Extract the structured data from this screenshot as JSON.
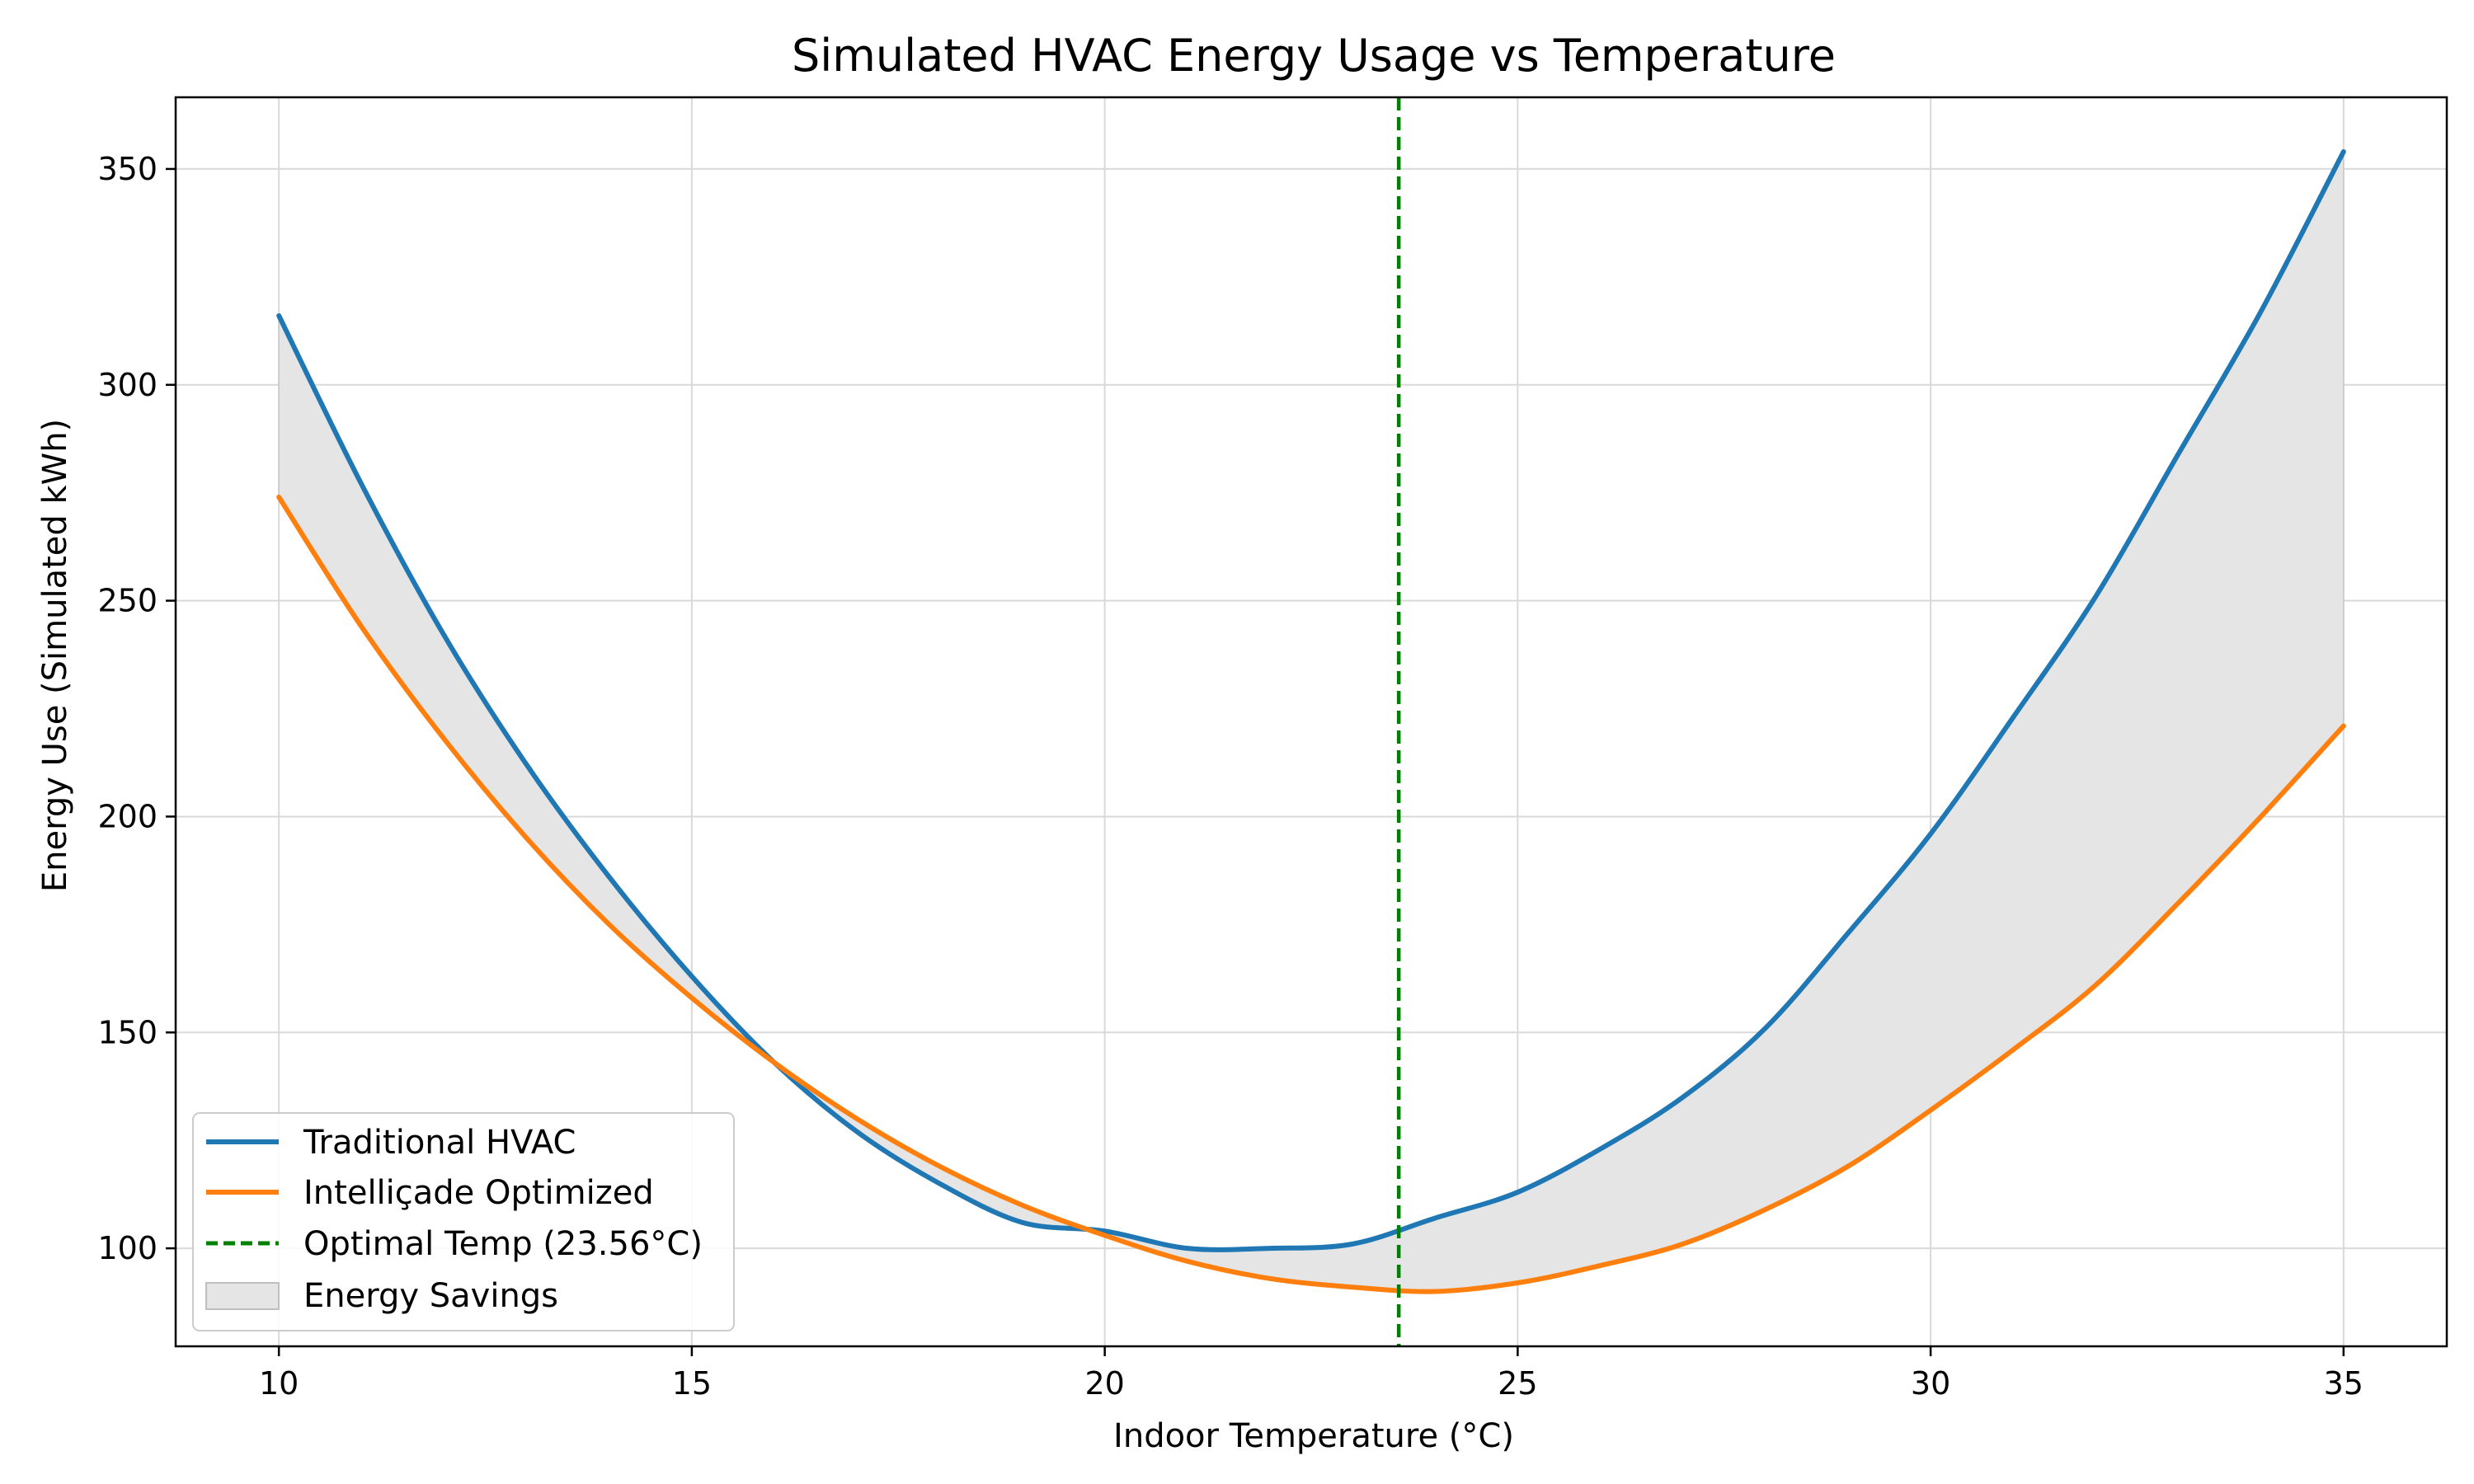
{
  "chart_data": {
    "type": "line",
    "title": "Simulated HVAC Energy Usage vs Temperature",
    "xlabel": "Indoor Temperature (°C)",
    "ylabel": "Energy Use (Simulated kWh)",
    "xlim": [
      8.75,
      36.25
    ],
    "ylim": [
      77.3,
      366.6
    ],
    "x_ticks": [
      10,
      15,
      20,
      25,
      30,
      35
    ],
    "y_ticks": [
      100,
      150,
      200,
      250,
      300,
      350
    ],
    "grid": true,
    "legend_position": "lower-left",
    "series": [
      {
        "name": "Traditional HVAC",
        "color": "#1f77b4",
        "style": "solid",
        "x": [
          10,
          11,
          12,
          13,
          14,
          15,
          16,
          17,
          18,
          19,
          20,
          21,
          22,
          23,
          24,
          25,
          26,
          27,
          28,
          29,
          30,
          31,
          32,
          33,
          34,
          35
        ],
        "y": [
          316,
          277,
          242,
          212,
          186,
          163,
          143,
          127,
          115,
          106,
          104,
          100,
          100,
          101,
          107,
          113,
          123,
          135,
          151,
          173,
          196,
          223,
          251,
          284,
          317,
          354
        ]
      },
      {
        "name": "Intelliçade Optimized",
        "color": "#ff7f0e",
        "style": "solid",
        "x": [
          10,
          11,
          12,
          13,
          14,
          15,
          16,
          17,
          18,
          19,
          20,
          21,
          22,
          23,
          24,
          25,
          26,
          27,
          28,
          29,
          30,
          31,
          32,
          33,
          34,
          35
        ],
        "y": [
          274,
          244,
          218,
          195,
          175,
          158,
          143,
          130,
          119,
          110,
          103,
          97,
          93,
          91,
          90,
          92,
          96,
          101,
          109,
          119,
          132,
          146,
          161,
          180,
          200,
          221
        ]
      }
    ],
    "vertical_line": {
      "name": "Optimal Temp (23.56°C)",
      "x": 23.56,
      "color": "#008000",
      "style": "dashed"
    },
    "fill_between": {
      "name": "Energy Savings",
      "color": "#e5e5e5",
      "between": [
        "Traditional HVAC",
        "Intelliçade Optimized"
      ]
    }
  }
}
